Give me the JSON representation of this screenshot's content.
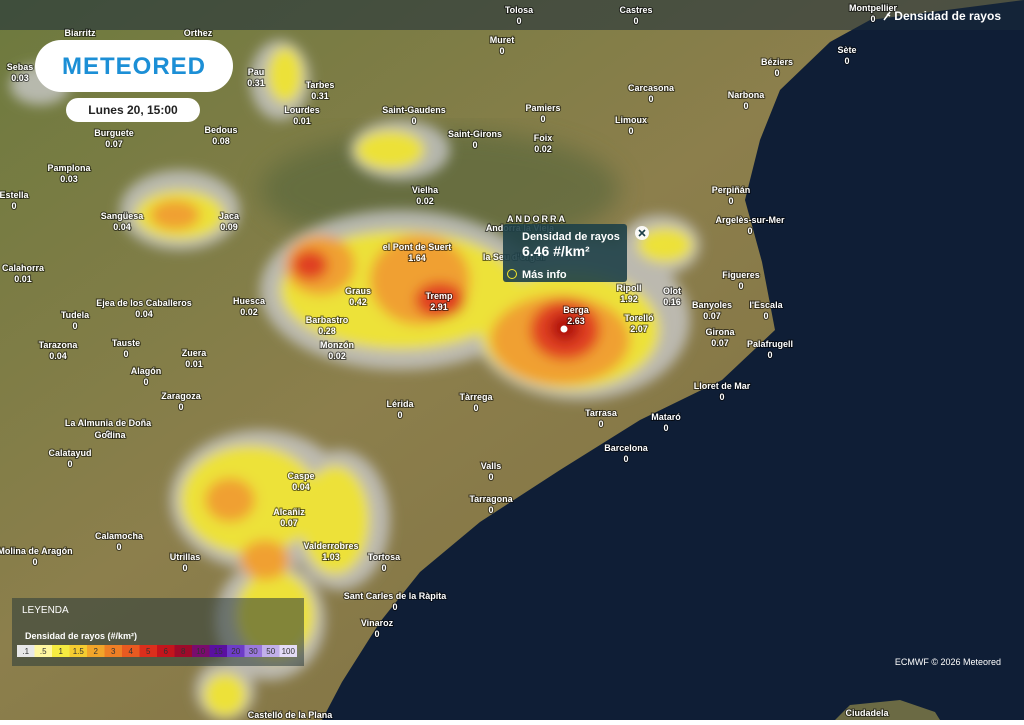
{
  "header": {
    "brand": "METEORED",
    "date": "Lunes 20, 15:00",
    "layer": "Densidad de rayos"
  },
  "popup": {
    "title": "Densidad de rayos",
    "value": "6.46 #/km²",
    "link": "Más info"
  },
  "legend": {
    "title": "LEYENDA",
    "subtitle": "Densidad de rayos (#/km²)",
    "scale": [
      ".1",
      ".5",
      "1",
      "1.5",
      "2",
      "3",
      "4",
      "5",
      "6",
      "8",
      "10",
      "15",
      "20",
      "30",
      "50",
      "100"
    ]
  },
  "credit": "ECMWF © 2026 Meteored",
  "region": "ANDORRA",
  "places": [
    {
      "name": "Tolosa",
      "value": "0"
    },
    {
      "name": "Castres",
      "value": "0"
    },
    {
      "name": "Montpellier",
      "value": "0"
    },
    {
      "name": "Biarritz"
    },
    {
      "name": "Orthez"
    },
    {
      "name": "Muret",
      "value": "0"
    },
    {
      "name": "Sète",
      "value": "0"
    },
    {
      "name": "Sebas",
      "value": "0.03"
    },
    {
      "name": "Pau",
      "value": "0.31"
    },
    {
      "name": "Tarbes",
      "value": "0.31"
    },
    {
      "name": "Béziers",
      "value": "0"
    },
    {
      "name": "Saint-Gaudens",
      "value": "0"
    },
    {
      "name": "Pamiers",
      "value": "0"
    },
    {
      "name": "Carcasona",
      "value": "0"
    },
    {
      "name": "Narbona",
      "value": "0"
    },
    {
      "name": "Lourdes",
      "value": "0.01"
    },
    {
      "name": "Burguete",
      "value": "0.07"
    },
    {
      "name": "Bedous",
      "value": "0.08"
    },
    {
      "name": "Saint-Girons",
      "value": "0"
    },
    {
      "name": "Foix",
      "value": "0.02"
    },
    {
      "name": "Limoux",
      "value": "0"
    },
    {
      "name": "Pamplona",
      "value": "0.03"
    },
    {
      "name": "Vielha",
      "value": "0.02"
    },
    {
      "name": "Perpiñán",
      "value": "0"
    },
    {
      "name": "Estella",
      "value": "0"
    },
    {
      "name": "Sangüesa",
      "value": "0.04"
    },
    {
      "name": "Jaca",
      "value": "0.09"
    },
    {
      "name": "Argelès-sur-Mer",
      "value": "0"
    },
    {
      "name": "Andorra la Vieja"
    },
    {
      "name": "el Pont de Suert",
      "value": "1.64"
    },
    {
      "name": "la Seu d'Urgell"
    },
    {
      "name": "Calahorra",
      "value": "0.01"
    },
    {
      "name": "Figueres",
      "value": "0"
    },
    {
      "name": "Graus",
      "value": "0.42"
    },
    {
      "name": "Tremp",
      "value": "2.91"
    },
    {
      "name": "Ripoll",
      "value": "1.92"
    },
    {
      "name": "Olot",
      "value": "0.16"
    },
    {
      "name": "Ejea de los Caballeros",
      "value": "0.04"
    },
    {
      "name": "Huesca",
      "value": "0.02"
    },
    {
      "name": "Berga",
      "value": "2.63"
    },
    {
      "name": "Banyoles",
      "value": "0.07"
    },
    {
      "name": "l'Escala",
      "value": "0"
    },
    {
      "name": "Tudela",
      "value": "0"
    },
    {
      "name": "Barbastro",
      "value": "0.28"
    },
    {
      "name": "Torelló",
      "value": "2.07"
    },
    {
      "name": "Girona",
      "value": "0.07"
    },
    {
      "name": "Tauste",
      "value": "0"
    },
    {
      "name": "Monzón",
      "value": "0.02"
    },
    {
      "name": "Palafrugell",
      "value": "0"
    },
    {
      "name": "Tarazona",
      "value": "0.04"
    },
    {
      "name": "Zuera",
      "value": "0.01"
    },
    {
      "name": "Alagón",
      "value": "0"
    },
    {
      "name": "Lloret de Mar",
      "value": "0"
    },
    {
      "name": "Zaragoza",
      "value": "0"
    },
    {
      "name": "Lérida",
      "value": "0"
    },
    {
      "name": "Tàrrega",
      "value": "0"
    },
    {
      "name": "Tarrasa",
      "value": "0"
    },
    {
      "name": "Mataró",
      "value": "0"
    },
    {
      "name": "La Almunia de Doña",
      "value": "0"
    },
    {
      "name": "Godina"
    },
    {
      "name": "Barcelona",
      "value": "0"
    },
    {
      "name": "Calatayud",
      "value": "0"
    },
    {
      "name": "Valls",
      "value": "0"
    },
    {
      "name": "Caspe",
      "value": "0.04"
    },
    {
      "name": "Tarragona",
      "value": "0"
    },
    {
      "name": "Alcañiz",
      "value": "0.07"
    },
    {
      "name": "Calamocha",
      "value": "0"
    },
    {
      "name": "Valderrobres",
      "value": "1.03"
    },
    {
      "name": "Molina de Aragón",
      "value": "0"
    },
    {
      "name": "Utrillas",
      "value": "0"
    },
    {
      "name": "Tortosa",
      "value": "0"
    },
    {
      "name": "Sant Carles de la Ràpita",
      "value": "0"
    },
    {
      "name": "Vinaroz",
      "value": "0"
    },
    {
      "name": "Castelló de la Plana"
    },
    {
      "name": "Ciudadela"
    }
  ]
}
